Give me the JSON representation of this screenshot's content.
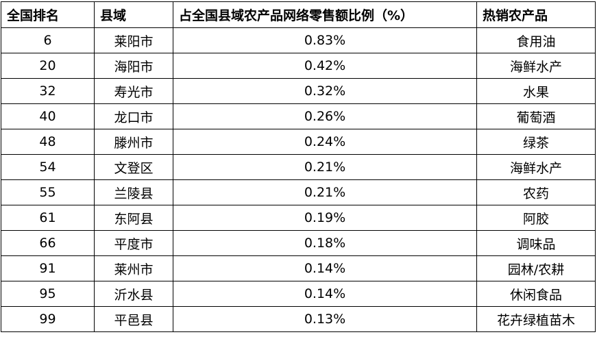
{
  "table": {
    "header": [
      "全国排名",
      "县域",
      "占全国县域农产品网络零售额比例（%）",
      "热销农产品"
    ],
    "rows": [
      [
        "6",
        "莱阳市",
        "0.83%",
        "食用油"
      ],
      [
        "20",
        "海阳市",
        "0.42%",
        "海鲜水产"
      ],
      [
        "32",
        "寿光市",
        "0.32%",
        "水果"
      ],
      [
        "40",
        "龙口市",
        "0.26%",
        "葡萄酒"
      ],
      [
        "48",
        "滕州市",
        "0.24%",
        "绿茶"
      ],
      [
        "54",
        "文登区",
        "0.21%",
        "海鲜水产"
      ],
      [
        "55",
        "兰陵县",
        "0.21%",
        "农药"
      ],
      [
        "61",
        "东阿县",
        "0.19%",
        "阿胶"
      ],
      [
        "66",
        "平度市",
        "0.18%",
        "调味品"
      ],
      [
        "91",
        "莱州市",
        "0.14%",
        "园林/农耕"
      ],
      [
        "95",
        "沂水县",
        "0.14%",
        "休闲食品"
      ],
      [
        "99",
        "平邑县",
        "0.13%",
        "花卉绿植苗木"
      ]
    ]
  }
}
